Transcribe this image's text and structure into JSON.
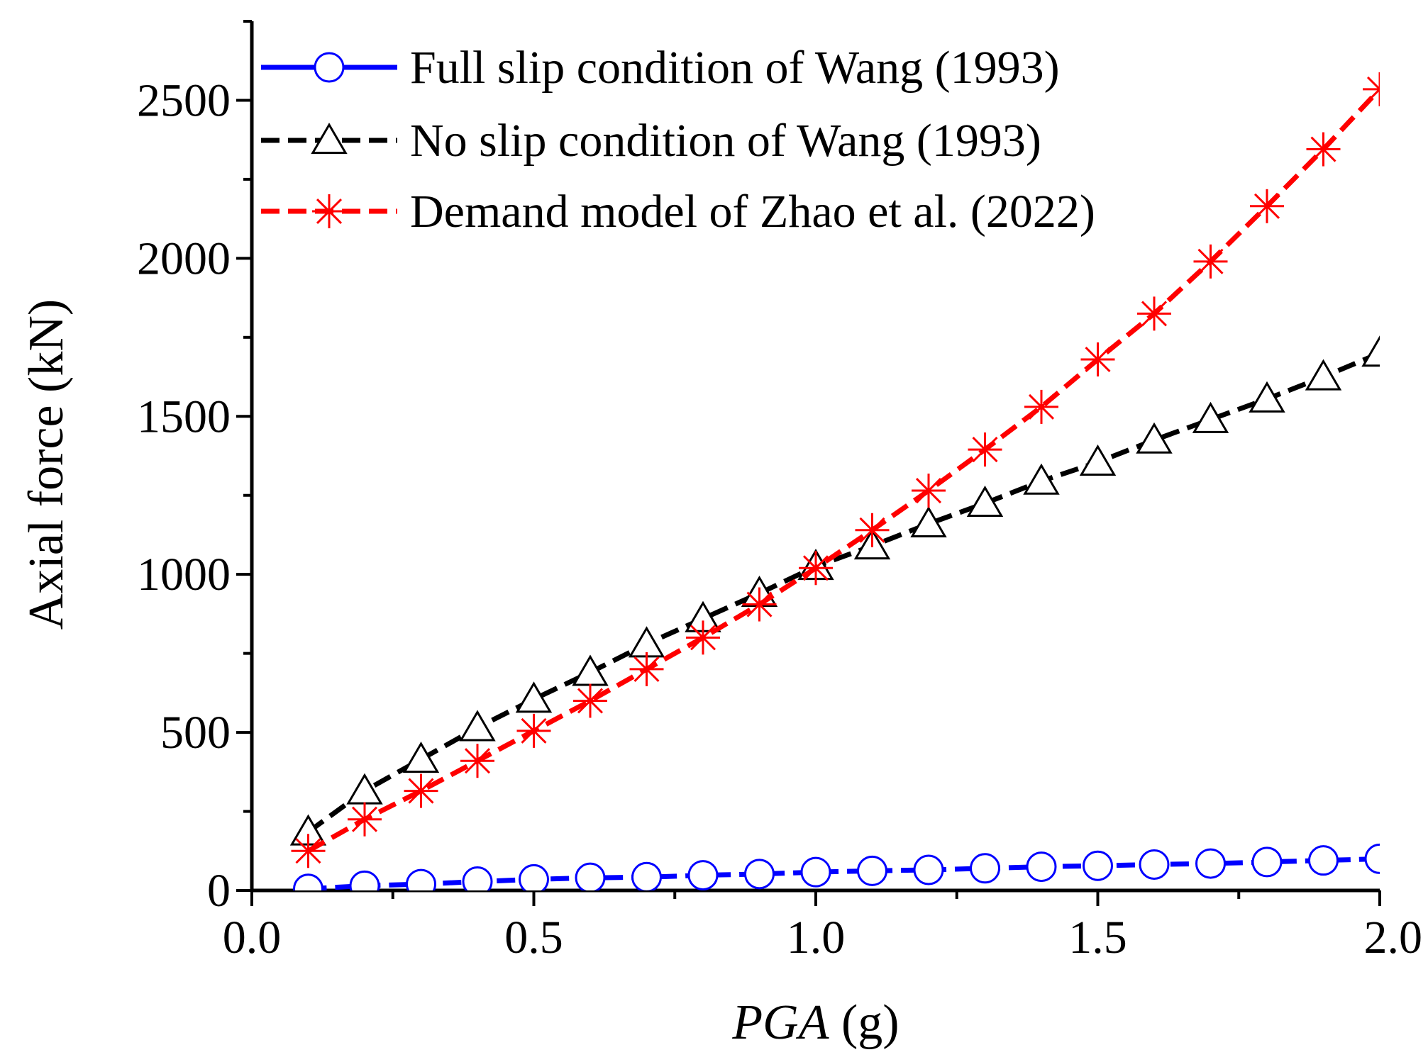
{
  "chart_data": {
    "type": "line",
    "title": "",
    "xlabel_italic": "PGA",
    "xlabel_unit": " (g)",
    "ylabel": "Axial force (kN)",
    "xlim": [
      0.0,
      2.0
    ],
    "ylim": [
      0,
      2750
    ],
    "x_ticks": [
      0.0,
      0.5,
      1.0,
      1.5,
      2.0
    ],
    "x_tick_labels": [
      "0.0",
      "0.5",
      "1.0",
      "1.5",
      "2.0"
    ],
    "y_ticks": [
      0,
      500,
      1000,
      1500,
      2000,
      2500
    ],
    "y_tick_labels": [
      "0",
      "500",
      "1000",
      "1500",
      "2000",
      "2500"
    ],
    "grid": false,
    "legend_position": "top-left",
    "x": [
      0.1,
      0.2,
      0.3,
      0.4,
      0.5,
      0.6,
      0.7,
      0.8,
      0.9,
      1.0,
      1.1,
      1.2,
      1.3,
      1.4,
      1.5,
      1.6,
      1.7,
      1.8,
      1.9,
      2.0
    ],
    "series": [
      {
        "name": "Full slip condition of Wang (1993)",
        "color": "#0000ff",
        "marker": "circle",
        "values": [
          5,
          15,
          20,
          28,
          35,
          40,
          42,
          48,
          52,
          58,
          62,
          65,
          70,
          75,
          78,
          82,
          85,
          90,
          95,
          100
        ]
      },
      {
        "name": "No slip condition of Wang (1993)",
        "color": "#000000",
        "marker": "triangle",
        "values": [
          185,
          315,
          415,
          515,
          605,
          690,
          780,
          860,
          940,
          1025,
          1090,
          1160,
          1225,
          1295,
          1355,
          1425,
          1490,
          1555,
          1625,
          1700
        ]
      },
      {
        "name": "Demand model of Zhao et al. (2022)",
        "color": "#ff0000",
        "marker": "asterisk",
        "values": [
          125,
          225,
          315,
          410,
          505,
          600,
          700,
          800,
          905,
          1020,
          1140,
          1265,
          1395,
          1530,
          1680,
          1825,
          1990,
          2165,
          2345,
          2535
        ]
      }
    ]
  }
}
